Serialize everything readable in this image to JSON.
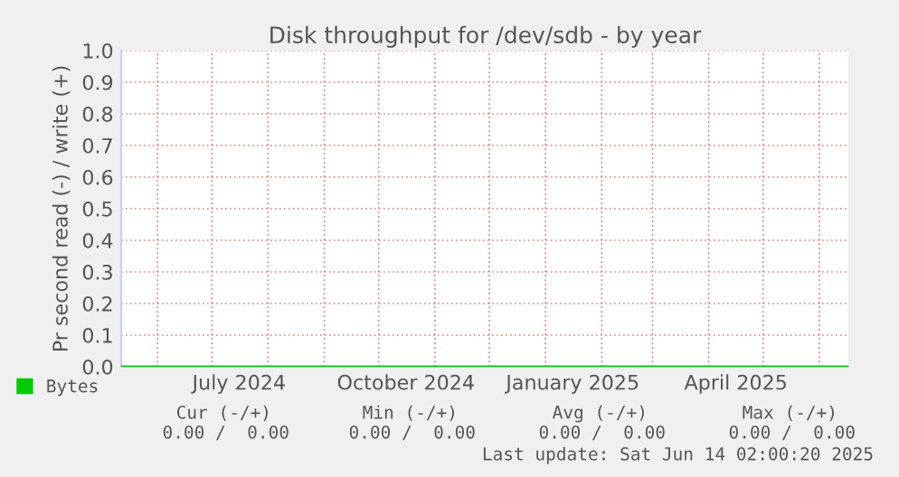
{
  "chart_data": {
    "type": "line",
    "title": "Disk throughput for /dev/sdb - by year",
    "ylabel": "Pr second read (-) / write (+)",
    "series": [
      {
        "name": "Bytes",
        "color": "#00cc00",
        "x": [
          "2024-05-12",
          "2025-06-17"
        ],
        "values": [
          0,
          0
        ]
      }
    ],
    "xlim": [
      "2024-05-12",
      "2025-06-17"
    ],
    "xticks": [
      {
        "value": "2024-06-01",
        "label": null
      },
      {
        "value": "2024-07-01",
        "label": null
      },
      {
        "value": "2024-07-16",
        "label": "July 2024"
      },
      {
        "value": "2024-08-01",
        "label": null
      },
      {
        "value": "2024-09-01",
        "label": null
      },
      {
        "value": "2024-10-01",
        "label": null
      },
      {
        "value": "2024-10-16",
        "label": "October 2024"
      },
      {
        "value": "2024-11-01",
        "label": null
      },
      {
        "value": "2024-12-01",
        "label": null
      },
      {
        "value": "2025-01-01",
        "label": null
      },
      {
        "value": "2025-01-16",
        "label": "January 2025"
      },
      {
        "value": "2025-02-01",
        "label": null
      },
      {
        "value": "2025-03-01",
        "label": null
      },
      {
        "value": "2025-04-01",
        "label": null
      },
      {
        "value": "2025-04-16",
        "label": "April 2025"
      },
      {
        "value": "2025-05-01",
        "label": null
      },
      {
        "value": "2025-06-01",
        "label": null
      }
    ],
    "ylim": [
      0,
      1.0
    ],
    "yticks": [
      {
        "value": 0,
        "label": "0.0"
      },
      {
        "value": 0.1,
        "label": "0.1"
      },
      {
        "value": 0.2,
        "label": "0.2"
      },
      {
        "value": 0.3,
        "label": "0.3"
      },
      {
        "value": 0.4,
        "label": "0.4"
      },
      {
        "value": 0.5,
        "label": "0.5"
      },
      {
        "value": 0.6,
        "label": "0.6"
      },
      {
        "value": 0.7,
        "label": "0.7"
      },
      {
        "value": 0.8,
        "label": "0.8"
      },
      {
        "value": 0.9,
        "label": "0.9"
      },
      {
        "value": 1.0,
        "label": "1.0"
      }
    ],
    "grid": true,
    "legend": "bottom left",
    "annotations": [
      "Cur (-/+)",
      "Min (-/+)",
      "Avg (-/+)",
      "Max (-/+)",
      "0.00 /  0.00",
      "0.00 /  0.00",
      "0.00 /  0.00",
      "0.00 /  0.00",
      "Last update: Sat Jun 14 02:00:20 2025"
    ]
  }
}
